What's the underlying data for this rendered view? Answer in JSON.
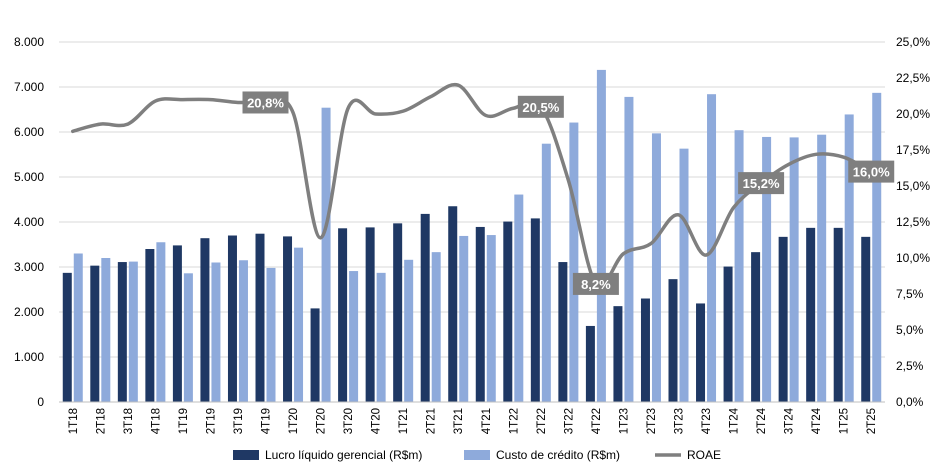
{
  "chart_data": {
    "type": "bar+line",
    "categories": [
      "1T18",
      "2T18",
      "3T18",
      "4T18",
      "1T19",
      "2T19",
      "3T19",
      "4T19",
      "1T20",
      "2T20",
      "3T20",
      "4T20",
      "1T21",
      "2T21",
      "3T21",
      "4T21",
      "1T22",
      "2T22",
      "3T22",
      "4T22",
      "1T23",
      "2T23",
      "3T23",
      "4T23",
      "1T24",
      "2T24",
      "3T24",
      "4T24",
      "1T25",
      "2T25"
    ],
    "series": [
      {
        "name": "Lucro líquido gerencial (R$m)",
        "type": "bar",
        "axis": "left",
        "color": "#1f3864",
        "values": [
          2870,
          3030,
          3110,
          3400,
          3480,
          3640,
          3700,
          3740,
          3680,
          2080,
          3860,
          3880,
          3970,
          4180,
          4350,
          3890,
          4010,
          4080,
          3110,
          1690,
          2130,
          2300,
          2730,
          2190,
          3010,
          3330,
          3670,
          3870,
          3870,
          3670
        ]
      },
      {
        "name": "Custo de crédito (R$m)",
        "type": "bar",
        "axis": "right-not",
        "axisRef": "left",
        "color": "#8eaadb",
        "values": [
          3300,
          3200,
          3120,
          3550,
          2860,
          3100,
          3150,
          2980,
          3430,
          6540,
          2910,
          2870,
          3160,
          3330,
          3690,
          3710,
          4610,
          5740,
          6210,
          7380,
          6780,
          5970,
          5630,
          6840,
          6040,
          5890,
          5880,
          5940,
          6390,
          6870
        ]
      },
      {
        "name": "ROAE",
        "type": "line",
        "axis": "right",
        "color": "#7f7f7f",
        "values": [
          18.8,
          19.3,
          19.3,
          20.9,
          21.0,
          21.0,
          20.8,
          20.8,
          20.1,
          11.4,
          20.4,
          20.0,
          20.2,
          21.2,
          22.0,
          19.9,
          20.4,
          20.5,
          15.4,
          8.2,
          10.3,
          11.0,
          13.0,
          10.2,
          13.5,
          15.2,
          16.5,
          17.2,
          17.0,
          16.0
        ]
      }
    ],
    "annotations": [
      {
        "index": 7,
        "series": "ROAE",
        "text": "20,8%"
      },
      {
        "index": 17,
        "series": "ROAE",
        "text": "20,5%"
      },
      {
        "index": 19,
        "series": "ROAE",
        "text": "8,2%"
      },
      {
        "index": 25,
        "series": "ROAE",
        "text": "15,2%"
      },
      {
        "index": 29,
        "series": "ROAE",
        "text": "16,0%"
      }
    ],
    "left_axis": {
      "min": 0,
      "max": 8000,
      "step": 1000,
      "tick_labels": [
        "0",
        "1.000",
        "2.000",
        "3.000",
        "4.000",
        "5.000",
        "6.000",
        "7.000",
        "8.000"
      ]
    },
    "right_axis": {
      "min": 0,
      "max": 25,
      "step": 2.5,
      "tick_labels": [
        "0,0%",
        "2,5%",
        "5,0%",
        "7,5%",
        "10,0%",
        "12,5%",
        "15,0%",
        "17,5%",
        "20,0%",
        "22,5%",
        "25,0%"
      ]
    },
    "grid": true,
    "legend_position": "bottom",
    "annotation_color": "#7f7f7f"
  }
}
